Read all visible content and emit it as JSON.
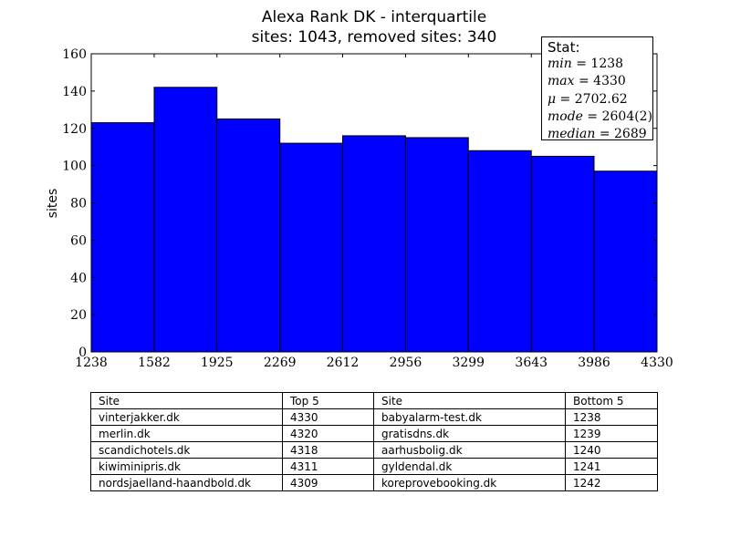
{
  "chart_data": {
    "type": "bar",
    "title": "Alexa Rank DK - interquartile",
    "subtitle": "sites: 1043, removed sites: 340",
    "xlabel": "",
    "ylabel": "sites",
    "xlim": [
      1238,
      4330
    ],
    "ylim": [
      0,
      160
    ],
    "x_ticks": [
      "1238",
      "1582",
      "1925",
      "2269",
      "2612",
      "2956",
      "3299",
      "3643",
      "3986",
      "4330"
    ],
    "y_ticks": [
      "0",
      "20",
      "40",
      "60",
      "80",
      "100",
      "120",
      "140",
      "160"
    ],
    "bin_edges": [
      1238,
      1582,
      1925,
      2269,
      2612,
      2956,
      3299,
      3643,
      3986,
      4330
    ],
    "values": [
      123,
      142,
      125,
      112,
      116,
      115,
      108,
      105,
      97
    ],
    "bar_color": "#0000ff",
    "grid": false
  },
  "stat_box": {
    "title": "Stat:",
    "lines": [
      {
        "key": "min",
        "sep": " = ",
        "value": "1238"
      },
      {
        "key": "max",
        "sep": " = ",
        "value": "4330"
      },
      {
        "key": "μ",
        "sep": " = ",
        "value": "2702.62"
      },
      {
        "key": "mode",
        "sep": " = ",
        "value": "2604(2)"
      },
      {
        "key": "median",
        "sep": " = ",
        "value": "2689"
      }
    ]
  },
  "table": {
    "headers": [
      "Site",
      "Top 5",
      "Site",
      "Bottom 5"
    ],
    "rows": [
      [
        "vinterjakker.dk",
        "4330",
        "babyalarm-test.dk",
        "1238"
      ],
      [
        "merlin.dk",
        "4320",
        "gratisdns.dk",
        "1239"
      ],
      [
        "scandichotels.dk",
        "4318",
        "aarhusbolig.dk",
        "1240"
      ],
      [
        "kiwiminipris.dk",
        "4311",
        "gyldendal.dk",
        "1241"
      ],
      [
        "nordsjaelland-haandbold.dk",
        "4309",
        "koreprovebooking.dk",
        "1242"
      ]
    ]
  }
}
